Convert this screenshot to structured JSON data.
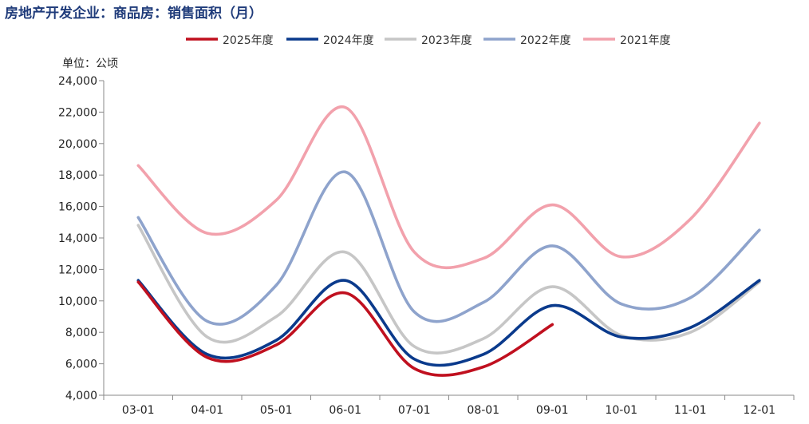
{
  "title": "房地产开发企业：商品房：销售面积（月）",
  "chart_data": {
    "type": "line",
    "unit": "单位：公顷",
    "categories": [
      "03-01",
      "04-01",
      "05-01",
      "06-01",
      "07-01",
      "08-01",
      "09-01",
      "10-01",
      "11-01",
      "12-01"
    ],
    "ylim": [
      4000,
      24000
    ],
    "yticks": [
      4000,
      6000,
      8000,
      10000,
      12000,
      14000,
      16000,
      18000,
      20000,
      22000,
      24000
    ],
    "ytick_labels": [
      "4,000",
      "6,000",
      "8,000",
      "10,000",
      "12,000",
      "14,000",
      "16,000",
      "18,000",
      "20,000",
      "22,000",
      "24,000"
    ],
    "grid": false,
    "legend_position": "top",
    "series": [
      {
        "name": "2025年度",
        "color": "#c0101f",
        "values": [
          11200,
          6400,
          7200,
          10500,
          5700,
          5800,
          8500,
          null,
          null,
          null
        ]
      },
      {
        "name": "2024年度",
        "color": "#0a3a8c",
        "values": [
          11300,
          6600,
          7500,
          11300,
          6300,
          6600,
          9700,
          7700,
          8300,
          11300
        ]
      },
      {
        "name": "2023年度",
        "color": "#c6c6c6",
        "values": [
          14800,
          7700,
          9000,
          13100,
          7100,
          7600,
          10900,
          7800,
          8000,
          11200
        ]
      },
      {
        "name": "2022年度",
        "color": "#8ea3cc",
        "values": [
          15300,
          8700,
          11000,
          18200,
          9300,
          9900,
          13500,
          9800,
          10200,
          14500
        ]
      },
      {
        "name": "2021年度",
        "color": "#f2a1ac",
        "values": [
          18600,
          14300,
          16400,
          22300,
          13100,
          12700,
          16100,
          12800,
          15200,
          21300
        ]
      }
    ]
  }
}
